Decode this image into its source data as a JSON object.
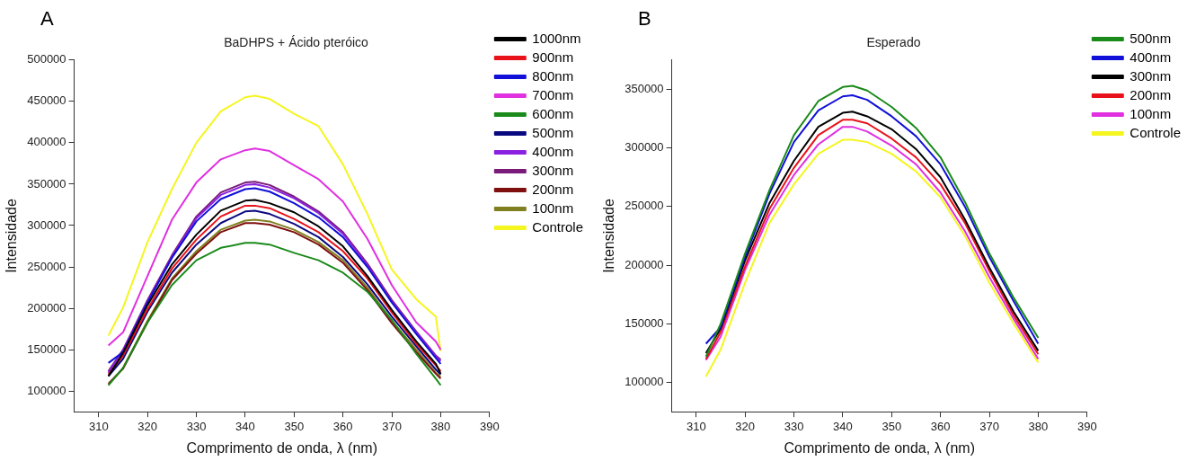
{
  "chart_data": [
    {
      "type": "line",
      "title": "BaDHPS + Ácido pteróico",
      "xlabel": "Comprimento de onda, λ (nm)",
      "ylabel": "Intensidade",
      "annotations": [
        "A"
      ],
      "x": [
        312,
        315,
        320,
        325,
        330,
        335,
        340,
        342,
        345,
        350,
        355,
        360,
        365,
        370,
        375,
        379,
        380
      ],
      "xlim": [
        305,
        390
      ],
      "xticks": [
        310,
        320,
        330,
        340,
        350,
        360,
        370,
        380,
        390
      ],
      "ylim": [
        75000,
        500000
      ],
      "yticks": [
        100000,
        150000,
        200000,
        250000,
        300000,
        350000,
        400000,
        450000,
        500000
      ],
      "grid": false,
      "legend": "top right",
      "marker": "none",
      "line_style": "solid",
      "series": [
        {
          "name": "1000nm",
          "color": "#000000",
          "values": [
            118000,
            146000,
            204000,
            253000,
            289000,
            318000,
            330000,
            331000,
            327000,
            316000,
            299000,
            275000,
            239000,
            198000,
            160000,
            133000,
            121000
          ]
        },
        {
          "name": "900nm",
          "color": "#e8121b",
          "values": [
            120000,
            143000,
            199000,
            248000,
            283000,
            311000,
            324000,
            324000,
            321000,
            308000,
            292000,
            269000,
            236000,
            195000,
            157000,
            131000,
            124000
          ]
        },
        {
          "name": "800nm",
          "color": "#1010d8",
          "values": [
            134000,
            147000,
            207000,
            261000,
            305000,
            332000,
            344000,
            345000,
            341000,
            327000,
            310000,
            286000,
            250000,
            207000,
            169000,
            140000,
            133000
          ]
        },
        {
          "name": "700nm",
          "color": "#e030e0",
          "values": [
            155000,
            171000,
            239000,
            307000,
            352000,
            380000,
            391000,
            393000,
            390000,
            373000,
            356000,
            329000,
            284000,
            228000,
            183000,
            160000,
            150000
          ]
        },
        {
          "name": "600nm",
          "color": "#1a8a1a",
          "values": [
            107000,
            128000,
            183000,
            228000,
            258000,
            273000,
            279000,
            279000,
            277000,
            267000,
            258000,
            243000,
            220000,
            186000,
            145000,
            115000,
            107000
          ]
        },
        {
          "name": "500nm",
          "color": "#0a0a80",
          "values": [
            118000,
            139000,
            196000,
            243000,
            277000,
            303000,
            317000,
            318000,
            314000,
            302000,
            286000,
            262000,
            229000,
            190000,
            154000,
            126000,
            120000
          ]
        },
        {
          "name": "400nm",
          "color": "#8a20e0",
          "values": [
            122000,
            149000,
            208000,
            262000,
            309000,
            337000,
            349000,
            350000,
            346000,
            333000,
            315000,
            290000,
            252000,
            208000,
            171000,
            142000,
            136000
          ]
        },
        {
          "name": "300nm",
          "color": "#7a1a7a",
          "values": [
            124000,
            150000,
            210000,
            264000,
            311000,
            340000,
            352000,
            353000,
            349000,
            335000,
            317000,
            292000,
            254000,
            210000,
            172000,
            143000,
            138000
          ]
        },
        {
          "name": "200nm",
          "color": "#801010",
          "values": [
            109000,
            127000,
            183000,
            234000,
            266000,
            292000,
            303000,
            303000,
            301000,
            292000,
            277000,
            255000,
            222000,
            182000,
            147000,
            121000,
            115000
          ]
        },
        {
          "name": "100nm",
          "color": "#808020",
          "values": [
            107000,
            128000,
            185000,
            236000,
            269000,
            295000,
            306000,
            307000,
            305000,
            295000,
            280000,
            258000,
            225000,
            185000,
            150000,
            122000,
            117000
          ]
        },
        {
          "name": "Controle",
          "color": "#f5f520",
          "values": [
            167000,
            201000,
            280000,
            344000,
            400000,
            438000,
            455000,
            457000,
            453000,
            435000,
            420000,
            374000,
            314000,
            247000,
            211000,
            190000,
            148000
          ]
        }
      ]
    },
    {
      "type": "line",
      "title": "Esperado",
      "xlabel": "Comprimento de onda, λ (nm)",
      "ylabel": "Intensidade",
      "annotations": [
        "B"
      ],
      "x": [
        312,
        315,
        320,
        325,
        330,
        335,
        340,
        342,
        345,
        350,
        355,
        360,
        365,
        370,
        375,
        380
      ],
      "xlim": [
        305,
        390
      ],
      "xticks": [
        310,
        320,
        330,
        340,
        350,
        360,
        370,
        380,
        390
      ],
      "ylim": [
        75000,
        375000
      ],
      "yticks": [
        100000,
        150000,
        200000,
        250000,
        300000,
        350000
      ],
      "grid": false,
      "legend": "top right",
      "marker": "none",
      "line_style": "solid",
      "series": [
        {
          "name": "500nm",
          "color": "#1a8a1a",
          "values": [
            122000,
            150000,
            210000,
            264000,
            311000,
            340000,
            352000,
            353000,
            349000,
            335000,
            317000,
            292000,
            254000,
            210000,
            172000,
            138000
          ]
        },
        {
          "name": "400nm",
          "color": "#1010d8",
          "values": [
            133000,
            147000,
            207000,
            261000,
            305000,
            332000,
            344000,
            345000,
            341000,
            327000,
            310000,
            286000,
            250000,
            207000,
            169000,
            133000
          ]
        },
        {
          "name": "300nm",
          "color": "#000000",
          "values": [
            125000,
            146000,
            204000,
            253000,
            289000,
            318000,
            330000,
            331000,
            327000,
            316000,
            299000,
            275000,
            239000,
            198000,
            160000,
            127000
          ]
        },
        {
          "name": "200nm",
          "color": "#e8121b",
          "values": [
            120000,
            143000,
            199000,
            248000,
            283000,
            311000,
            324000,
            324000,
            321000,
            308000,
            292000,
            269000,
            236000,
            195000,
            157000,
            124000
          ]
        },
        {
          "name": "100nm",
          "color": "#e030e0",
          "values": [
            119000,
            139000,
            196000,
            243000,
            277000,
            303000,
            318000,
            318000,
            314000,
            302000,
            286000,
            262000,
            229000,
            190000,
            154000,
            120000
          ]
        },
        {
          "name": "Controle",
          "color": "#f5f520",
          "values": [
            105000,
            128000,
            185000,
            236000,
            269000,
            295000,
            307000,
            307000,
            305000,
            295000,
            280000,
            258000,
            225000,
            185000,
            150000,
            117000
          ]
        }
      ]
    }
  ]
}
